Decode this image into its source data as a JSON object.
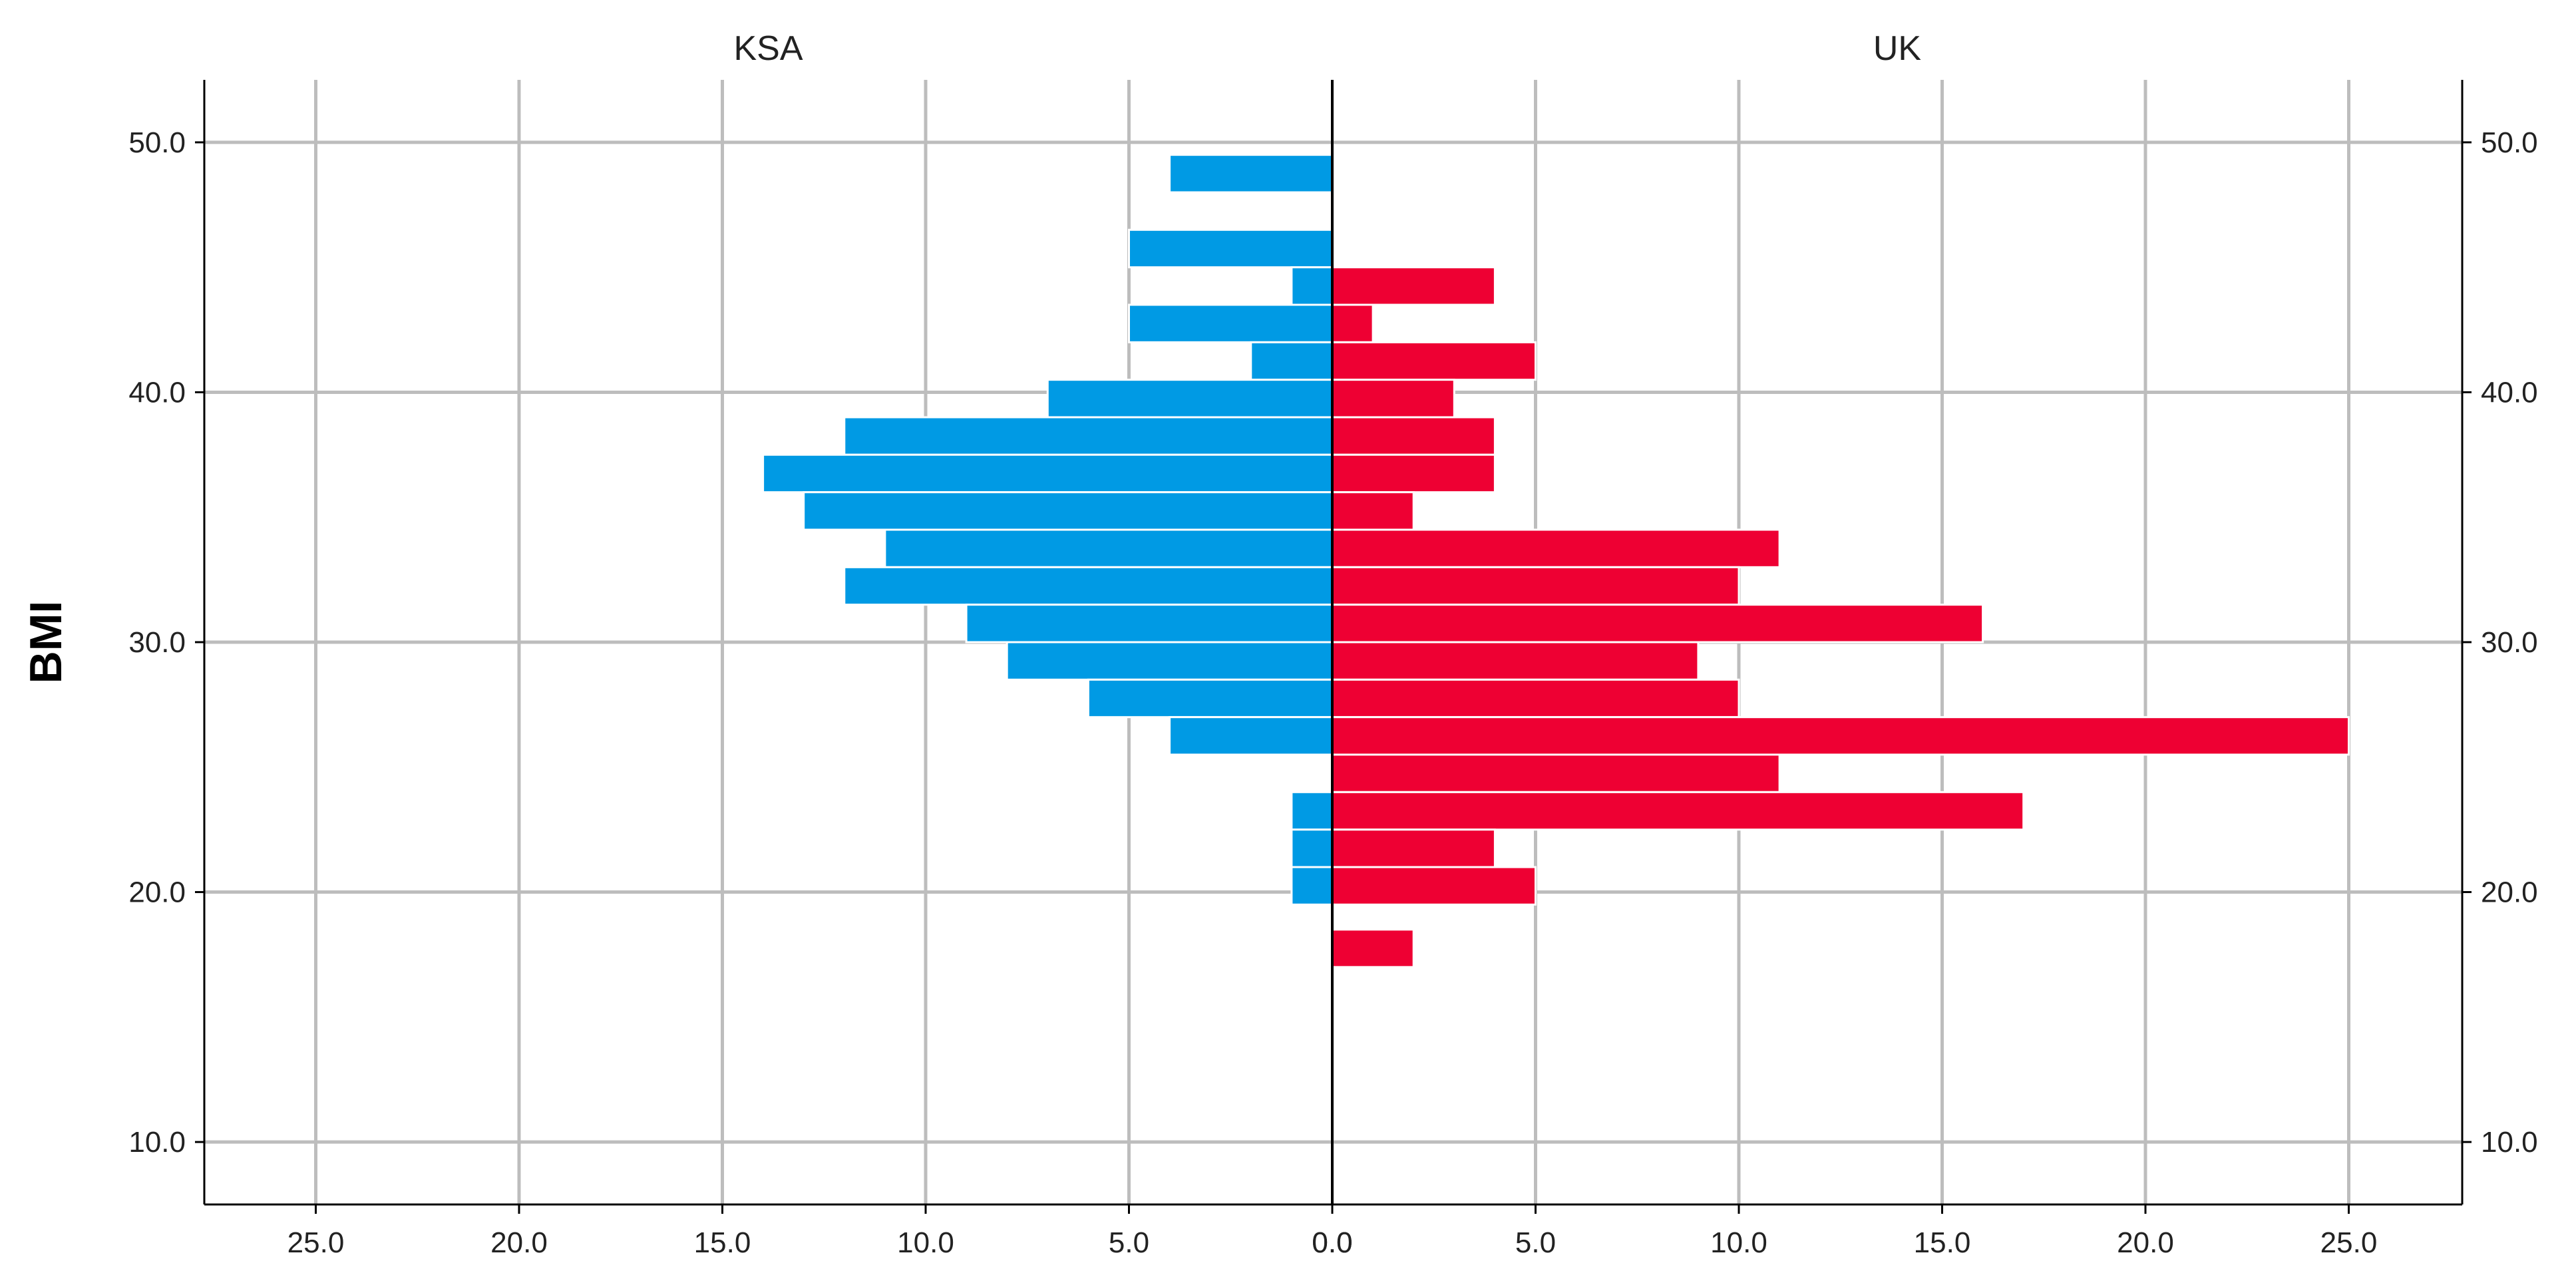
{
  "chart_data": {
    "type": "bar",
    "orientation": "horizontal-back-to-back",
    "ylabel": "BMI",
    "ylim": [
      7.5,
      52.5
    ],
    "yticks": [
      10,
      20,
      30,
      40,
      50
    ],
    "ytick_labels": [
      "10.0",
      "20.0",
      "30.0",
      "40.0",
      "50.0"
    ],
    "xlim": [
      0,
      27.8
    ],
    "xticks": [
      0,
      5,
      10,
      15,
      20,
      25
    ],
    "xtick_labels": [
      "0.0",
      "5.0",
      "10.0",
      "15.0",
      "20.0",
      "25.0"
    ],
    "grid": true,
    "bin_width": 1.5,
    "panels": [
      {
        "name": "KSA",
        "side": "left",
        "color": "#009ae4",
        "bins": [
          {
            "y": 48.75,
            "count": 4
          },
          {
            "y": 45.75,
            "count": 5
          },
          {
            "y": 44.25,
            "count": 1
          },
          {
            "y": 42.75,
            "count": 5
          },
          {
            "y": 41.25,
            "count": 2
          },
          {
            "y": 39.75,
            "count": 7
          },
          {
            "y": 38.25,
            "count": 12
          },
          {
            "y": 36.75,
            "count": 14
          },
          {
            "y": 35.25,
            "count": 13
          },
          {
            "y": 33.75,
            "count": 11
          },
          {
            "y": 32.25,
            "count": 12
          },
          {
            "y": 30.75,
            "count": 9
          },
          {
            "y": 29.25,
            "count": 8
          },
          {
            "y": 27.75,
            "count": 6
          },
          {
            "y": 26.25,
            "count": 4
          },
          {
            "y": 23.25,
            "count": 1
          },
          {
            "y": 21.75,
            "count": 1
          },
          {
            "y": 20.25,
            "count": 1
          }
        ]
      },
      {
        "name": "UK",
        "side": "right",
        "color": "#ee0033",
        "bins": [
          {
            "y": 44.25,
            "count": 4
          },
          {
            "y": 42.75,
            "count": 1
          },
          {
            "y": 41.25,
            "count": 5
          },
          {
            "y": 39.75,
            "count": 3
          },
          {
            "y": 38.25,
            "count": 4
          },
          {
            "y": 36.75,
            "count": 4
          },
          {
            "y": 35.25,
            "count": 2
          },
          {
            "y": 33.75,
            "count": 11
          },
          {
            "y": 32.25,
            "count": 10
          },
          {
            "y": 30.75,
            "count": 16
          },
          {
            "y": 29.25,
            "count": 9
          },
          {
            "y": 27.75,
            "count": 10
          },
          {
            "y": 26.25,
            "count": 25
          },
          {
            "y": 24.75,
            "count": 11
          },
          {
            "y": 23.25,
            "count": 17
          },
          {
            "y": 21.75,
            "count": 4
          },
          {
            "y": 20.25,
            "count": 5
          },
          {
            "y": 17.75,
            "count": 2
          }
        ]
      }
    ]
  }
}
